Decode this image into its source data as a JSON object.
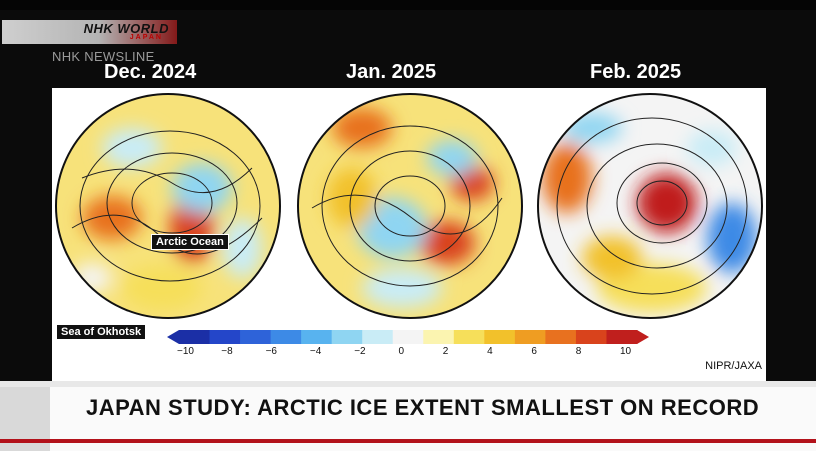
{
  "broadcaster": {
    "logo_main": "NHK WORLD",
    "logo_sub": "JAPAN",
    "program": "NHK NEWSLINE"
  },
  "figure": {
    "panels": [
      {
        "title": "Dec. 2024"
      },
      {
        "title": "Jan. 2025"
      },
      {
        "title": "Feb. 2025"
      }
    ],
    "labels": {
      "arctic_ocean": "Arctic Ocean",
      "sea_of_okhotsk": "Sea of Okhotsk"
    },
    "scale_ticks": [
      "−10",
      "−8",
      "−6",
      "−4",
      "−2",
      "0",
      "2",
      "4",
      "6",
      "8",
      "10"
    ],
    "scale_colors": [
      "#1b2fa6",
      "#2446c9",
      "#2e63d9",
      "#3d8ae6",
      "#58b3ef",
      "#8fd5f2",
      "#c9ecf6",
      "#f4f4f4",
      "#fbf4b0",
      "#f6df5a",
      "#f2c12b",
      "#ef9d22",
      "#e8711f",
      "#d9431c",
      "#c01f1d"
    ],
    "credit": "NIPR/JAXA"
  },
  "ticker": {
    "headline": "JAPAN STUDY: ARCTIC ICE EXTENT SMALLEST ON RECORD"
  }
}
